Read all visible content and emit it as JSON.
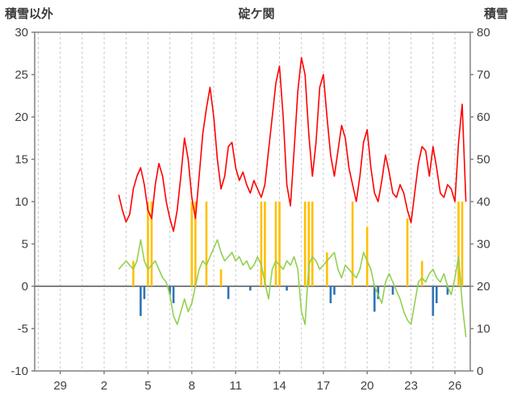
{
  "header": {
    "left_axis_title": "積雪以外",
    "chart_title": "碇ケ関",
    "right_axis_title": "積雪"
  },
  "chart_data": {
    "type": "line",
    "title": "碇ケ関",
    "style": {
      "axis_color": "#808080",
      "zero_line_color": "#7f7f7f",
      "gridline_color": "#c9c9c9",
      "text_color": "#404040",
      "background": "#ffffff"
    },
    "left_axis": {
      "label": "積雪以外",
      "min": -10,
      "max": 30,
      "tick_step": 5,
      "ticks": [
        30,
        25,
        20,
        15,
        10,
        5,
        0,
        -5,
        -10
      ]
    },
    "right_axis": {
      "label": "積雪",
      "min": 0,
      "max": 80,
      "tick_step": 10,
      "ticks": [
        80,
        70,
        60,
        50,
        40,
        30,
        20,
        10,
        0
      ]
    },
    "x_axis": {
      "tick_labels": [
        "29",
        "2",
        "5",
        "8",
        "11",
        "14",
        "17",
        "20",
        "23",
        "26"
      ],
      "tick_positions_days": [
        0,
        3,
        6,
        9,
        12,
        15,
        18,
        21,
        24,
        27
      ],
      "range_days": [
        -1.75,
        28.05
      ],
      "grid_start": -1.5,
      "gridline_interval_days": 1.5
    },
    "sampling": {
      "t_start": 4.0,
      "t_step": 0.25
    },
    "series": [
      {
        "name": "orange-bars",
        "type": "bar",
        "axis": "left",
        "color": "#FFC000",
        "values": [
          0,
          0,
          0,
          0,
          3,
          0,
          0,
          0,
          10,
          10,
          0,
          0,
          0,
          0,
          0,
          0,
          0,
          0,
          0,
          0,
          10,
          10,
          0,
          0,
          10,
          0,
          0,
          0,
          2,
          0,
          0,
          0,
          0,
          0,
          0,
          0,
          0,
          0,
          0,
          10,
          10,
          0,
          0,
          10,
          10,
          0,
          0,
          0,
          0,
          0,
          0,
          10,
          10,
          10,
          0,
          0,
          0,
          4,
          0,
          0,
          0,
          0,
          0,
          0,
          10,
          0,
          0,
          0,
          7,
          0,
          0,
          0,
          0,
          0,
          0,
          0,
          0,
          0,
          0,
          8,
          0,
          0,
          0,
          3,
          0,
          0,
          0,
          0,
          0,
          0,
          0,
          0,
          0,
          10,
          10,
          0
        ]
      },
      {
        "name": "blue-bars",
        "type": "bar",
        "axis": "left",
        "color": "#2E75B6",
        "values": [
          0,
          0,
          0,
          0,
          0,
          0,
          -3.5,
          -1.5,
          0,
          0,
          0,
          0,
          0,
          0,
          -1,
          -2,
          0,
          0,
          0,
          0,
          0,
          0,
          0,
          0,
          0,
          0,
          0,
          0,
          0,
          0,
          -1.5,
          0,
          0,
          0,
          0,
          0,
          -0.5,
          0,
          0,
          0,
          0,
          0,
          0,
          0,
          0,
          0,
          -0.5,
          0,
          0,
          0,
          0,
          0,
          0,
          0,
          0,
          0,
          0,
          0,
          -2,
          -1,
          0,
          0,
          0,
          0,
          0,
          0,
          0,
          0,
          0,
          0,
          -3,
          -1.5,
          0,
          0,
          0,
          -1,
          0,
          0,
          0,
          0,
          0,
          0,
          0,
          0,
          0,
          0,
          -3.5,
          -2,
          0,
          0,
          -1,
          0,
          0,
          0,
          0,
          0
        ]
      },
      {
        "name": "green-line",
        "type": "line",
        "axis": "left",
        "color": "#92D050",
        "values": [
          2,
          2.5,
          3,
          2.5,
          2,
          3,
          5.5,
          3,
          2,
          2.5,
          3,
          2,
          1,
          0.5,
          -1,
          -3.5,
          -4.5,
          -3,
          -1.5,
          -3,
          -2,
          0,
          2,
          3,
          2.5,
          3.5,
          4.5,
          5.5,
          4,
          3,
          3.5,
          4,
          3,
          3.5,
          2.5,
          3,
          2,
          2.5,
          3.5,
          2.5,
          0.5,
          -1.5,
          2,
          3,
          2.5,
          2,
          3,
          2.5,
          3.5,
          2,
          -3,
          -4.5,
          2.5,
          3.5,
          3,
          2,
          2.5,
          3,
          3.5,
          4,
          2,
          1,
          2.5,
          2,
          1.5,
          1,
          2,
          4,
          3,
          2,
          0,
          -1,
          -2,
          0.5,
          1.5,
          0.5,
          -0.5,
          -1.5,
          -3,
          -4,
          -4.5,
          -2,
          0.5,
          1,
          0.5,
          1.5,
          2,
          1,
          0.5,
          1.5,
          0,
          -1,
          1,
          3.5,
          -2,
          -6
        ]
      },
      {
        "name": "red-line",
        "type": "line",
        "axis": "right",
        "color": "#FF0000",
        "values": [
          41.6,
          38,
          35.2,
          37,
          43,
          46,
          48,
          44,
          38,
          36,
          44,
          49,
          46,
          40,
          36,
          33,
          38,
          46,
          55,
          50,
          41,
          36,
          46,
          56,
          62,
          67,
          60,
          50,
          43,
          46,
          53,
          54,
          48,
          45,
          47,
          44,
          42,
          45,
          43,
          41,
          44,
          52,
          60,
          68,
          72,
          60,
          44,
          39,
          52,
          66,
          74,
          70,
          56,
          46,
          54,
          67,
          70,
          60,
          51,
          46,
          52,
          58,
          55,
          48,
          44,
          40,
          46,
          54,
          57,
          48,
          42,
          40,
          45,
          51,
          47,
          42,
          41,
          44,
          42,
          38,
          35,
          42,
          49,
          53,
          52,
          46,
          53,
          48,
          42,
          41,
          44,
          43,
          40,
          54,
          63,
          40
        ]
      }
    ]
  }
}
